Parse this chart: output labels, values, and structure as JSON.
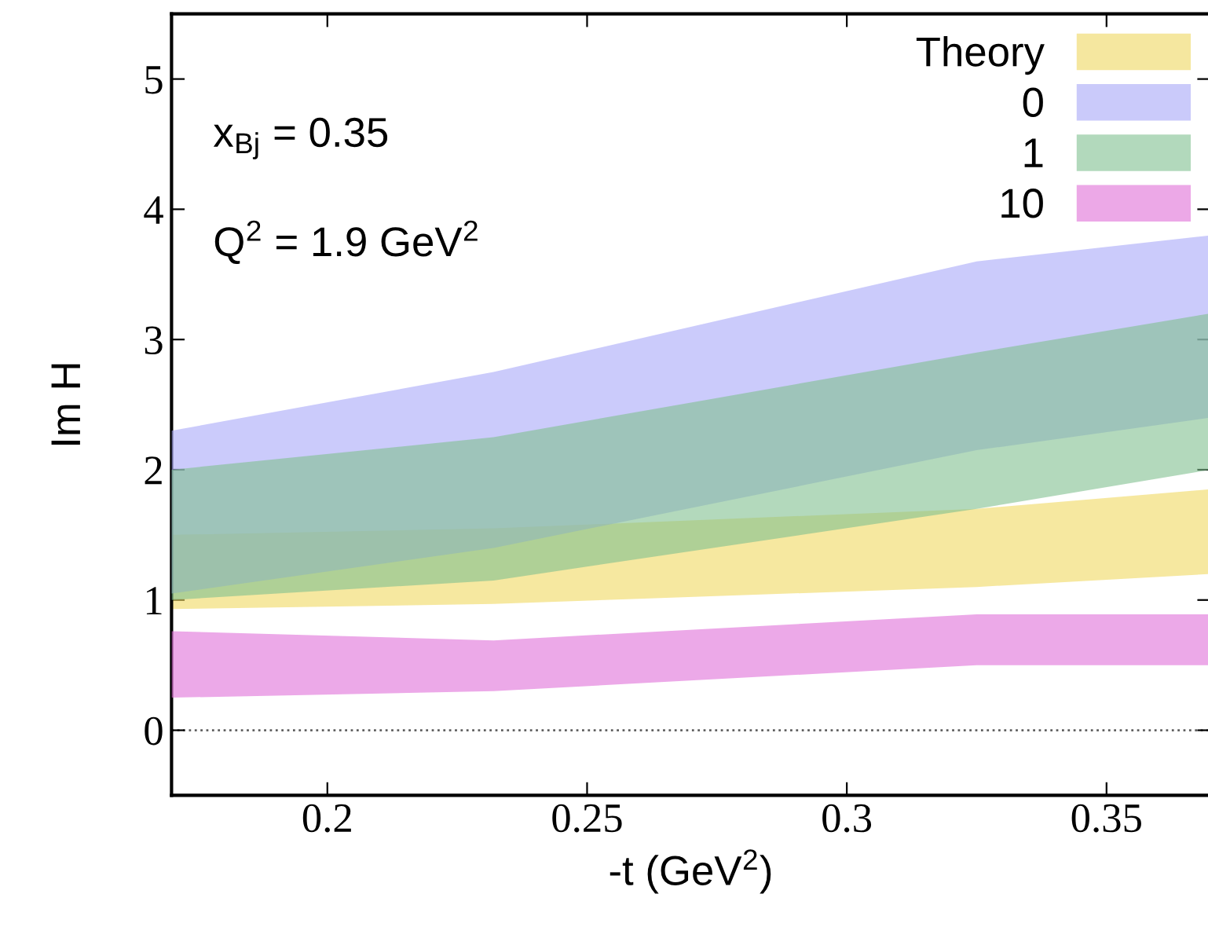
{
  "chart_data": {
    "type": "area",
    "xlabel": "-t (GeV$^{2}$)",
    "ylabel": "Im H",
    "x": [
      0.17,
      0.232,
      0.325,
      0.37
    ],
    "series": [
      {
        "name": "Theory",
        "color": "#f0d860",
        "values": [
          null,
          null,
          null,
          null
        ],
        "lower": [
          0.93,
          0.97,
          1.1,
          1.2
        ],
        "upper": [
          1.5,
          1.55,
          1.7,
          1.85
        ]
      },
      {
        "name": "0",
        "color": "#a8a8f8",
        "values": [
          null,
          null,
          null,
          null
        ],
        "lower": [
          1.05,
          1.4,
          2.15,
          2.4
        ],
        "upper": [
          2.3,
          2.75,
          3.6,
          3.8
        ]
      },
      {
        "name": "1",
        "color": "#80c090",
        "values": [
          null,
          null,
          null,
          null
        ],
        "lower": [
          1.0,
          1.15,
          1.7,
          2.0
        ],
        "upper": [
          2.0,
          2.25,
          2.9,
          3.2
        ]
      },
      {
        "name": "10",
        "color": "#e070d8",
        "values": [
          null,
          null,
          null,
          null
        ],
        "lower": [
          0.25,
          0.3,
          0.5,
          0.5
        ],
        "upper": [
          0.76,
          0.69,
          0.89,
          0.89
        ]
      }
    ],
    "xlim": [
      0.17,
      0.37
    ],
    "ylim": [
      -0.5,
      5.5
    ],
    "xticks": [
      0.2,
      0.25,
      0.3,
      0.35
    ],
    "yticks": [
      0,
      1,
      2,
      3,
      4,
      5
    ],
    "ref_lines": [
      {
        "axis": "y",
        "value": 0,
        "color": "#606060",
        "line_style": "dotted"
      }
    ],
    "annotations": [
      {
        "text": "x$_{Bj}$ = 0.35"
      },
      {
        "text": "Q$^{2}$ = 1.9 GeV$^{2}$"
      }
    ],
    "legend": "top right",
    "grid": false
  }
}
